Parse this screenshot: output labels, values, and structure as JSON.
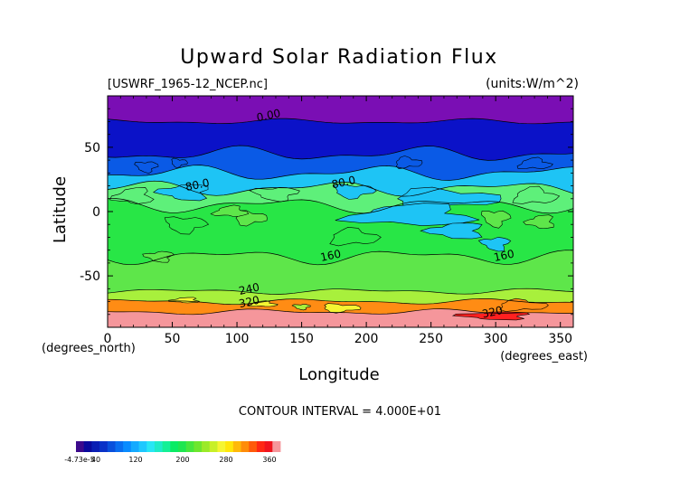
{
  "chart_data": {
    "type": "contour",
    "title": "Upward Solar Radiation Flux",
    "source_label": "[USWRF_1965-12_NCEP.nc]",
    "units_label": "(units:W/m^2)",
    "xlabel": "Longitude",
    "ylabel": "Latitude",
    "x_unit_label": "(degrees_east)",
    "y_unit_label": "(degrees_north)",
    "xlim": [
      0,
      360
    ],
    "ylim": [
      -90,
      90
    ],
    "x_ticks": [
      0,
      50,
      100,
      150,
      200,
      250,
      300,
      350
    ],
    "y_ticks": [
      -50,
      0,
      50
    ],
    "contour_interval_text": "CONTOUR INTERVAL = 4.000E+01",
    "contour_labels": [
      {
        "text": "0.00",
        "lon": 125,
        "lat": 72
      },
      {
        "text": "80.0",
        "lon": 70,
        "lat": 18
      },
      {
        "text": "80.0",
        "lon": 183,
        "lat": 20
      },
      {
        "text": "160",
        "lon": 173,
        "lat": -37
      },
      {
        "text": "160",
        "lon": 307,
        "lat": -37
      },
      {
        "text": "240",
        "lon": 110,
        "lat": -63
      },
      {
        "text": "320",
        "lon": 110,
        "lat": -73
      },
      {
        "text": "320",
        "lon": 298,
        "lat": -81
      }
    ],
    "bands": [
      {
        "from": 90,
        "to": 70,
        "value": 0
      },
      {
        "from": 70,
        "to": 45,
        "value": 40
      },
      {
        "from": 45,
        "to": 30,
        "value": 70
      },
      {
        "from": 30,
        "to": 18,
        "value": 110
      },
      {
        "from": 18,
        "to": 5,
        "value": 150
      },
      {
        "from": 5,
        "to": -35,
        "value": 180
      },
      {
        "from": -35,
        "to": -62,
        "value": 200
      },
      {
        "from": -62,
        "to": -70,
        "value": 250
      },
      {
        "from": -70,
        "to": -78,
        "value": 330
      },
      {
        "from": -78,
        "to": -90,
        "value": 370
      }
    ],
    "colorbar": {
      "colors": [
        "#3c0a8c",
        "#0a0a9c",
        "#0a1eb4",
        "#0a32c8",
        "#0a50dc",
        "#0a6ef0",
        "#0a8cff",
        "#14aaff",
        "#1ec8ff",
        "#28e6f5",
        "#1eebc8",
        "#14f096",
        "#0aeb64",
        "#1ee650",
        "#46e63c",
        "#6ee62d",
        "#9bea28",
        "#c8f028",
        "#f5f532",
        "#ffe60a",
        "#ffb90a",
        "#ff8c0a",
        "#ff5a0a",
        "#ff2814",
        "#f0141e",
        "#f5969b"
      ],
      "tick_labels": [
        "-4.73e-5",
        "40",
        "120",
        "200",
        "280",
        "360"
      ]
    },
    "legend_colors": {
      "purple": "#7a0eb4",
      "deep_blue": "#0b12c8",
      "blue": "#0a5ae6",
      "cyan": "#1ec4f5",
      "light_cyan": "#5ee0f8",
      "green_light": "#5ef07a",
      "green": "#28e646",
      "yellowgreen": "#a8f03c",
      "yellow": "#f5f532",
      "orange": "#ff8c14",
      "red": "#ff2020",
      "pink": "#f5969b"
    }
  }
}
